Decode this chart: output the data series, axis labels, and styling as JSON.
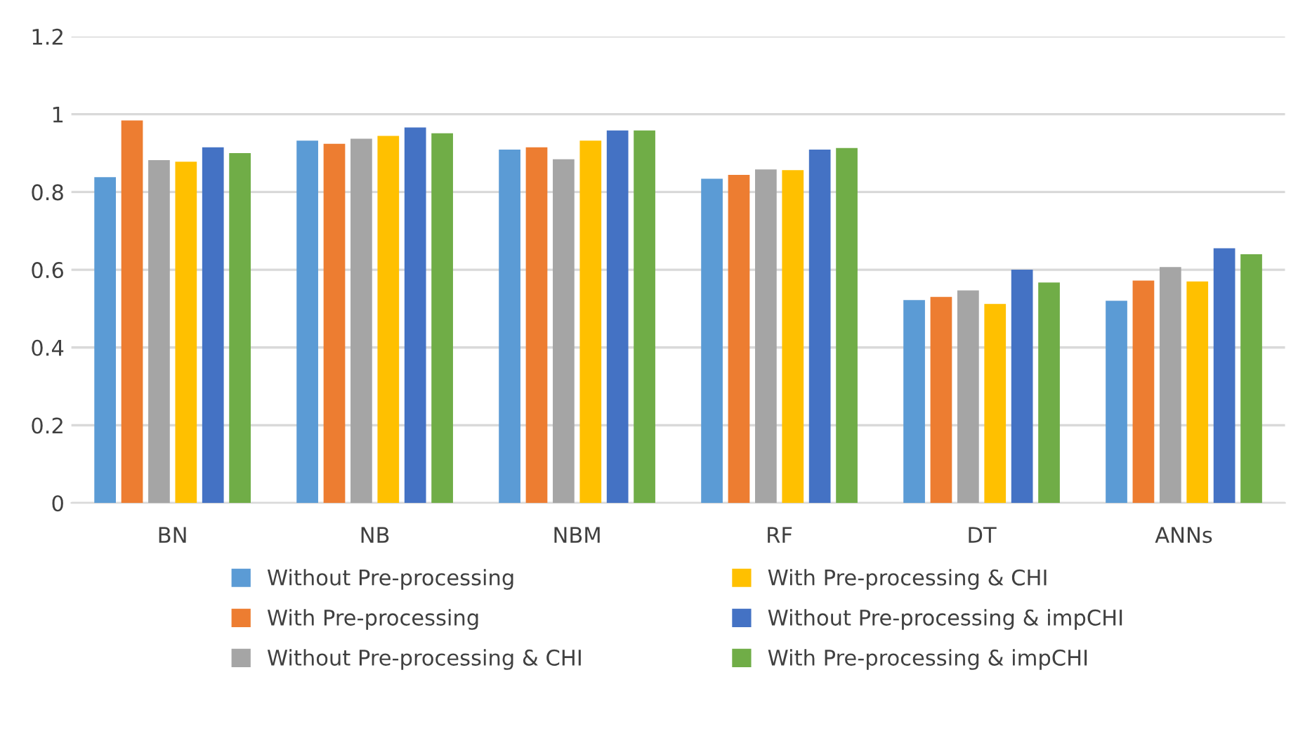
{
  "chart_data": {
    "type": "bar",
    "categories": [
      "BN",
      "NB",
      "NBM",
      "RF",
      "DT",
      "ANNs"
    ],
    "series": [
      {
        "name": "Without Pre-processing",
        "color": "#5b9bd5",
        "values": [
          0.838,
          0.932,
          0.909,
          0.834,
          0.522,
          0.52
        ]
      },
      {
        "name": "With Pre-processing",
        "color": "#ed7d31",
        "values": [
          0.984,
          0.924,
          0.915,
          0.844,
          0.53,
          0.572
        ]
      },
      {
        "name": "Without Pre-processing & CHI",
        "color": "#a5a5a5",
        "values": [
          0.882,
          0.937,
          0.884,
          0.858,
          0.547,
          0.607
        ]
      },
      {
        "name": "With Pre-processing & CHI",
        "color": "#ffc000",
        "values": [
          0.878,
          0.944,
          0.932,
          0.856,
          0.512,
          0.57
        ]
      },
      {
        "name": "Without Pre-processing & impCHI",
        "color": "#4472c4",
        "values": [
          0.915,
          0.966,
          0.958,
          0.909,
          0.6,
          0.655
        ]
      },
      {
        "name": "With Pre-processing & impCHI",
        "color": "#70ad47",
        "values": [
          0.9,
          0.951,
          0.958,
          0.913,
          0.567,
          0.64
        ]
      }
    ],
    "ylim": [
      0,
      1.2
    ],
    "yticks": [
      0,
      0.2,
      0.4,
      0.6,
      0.8,
      1,
      1.2
    ],
    "grid": "y",
    "legend": "bottom"
  }
}
